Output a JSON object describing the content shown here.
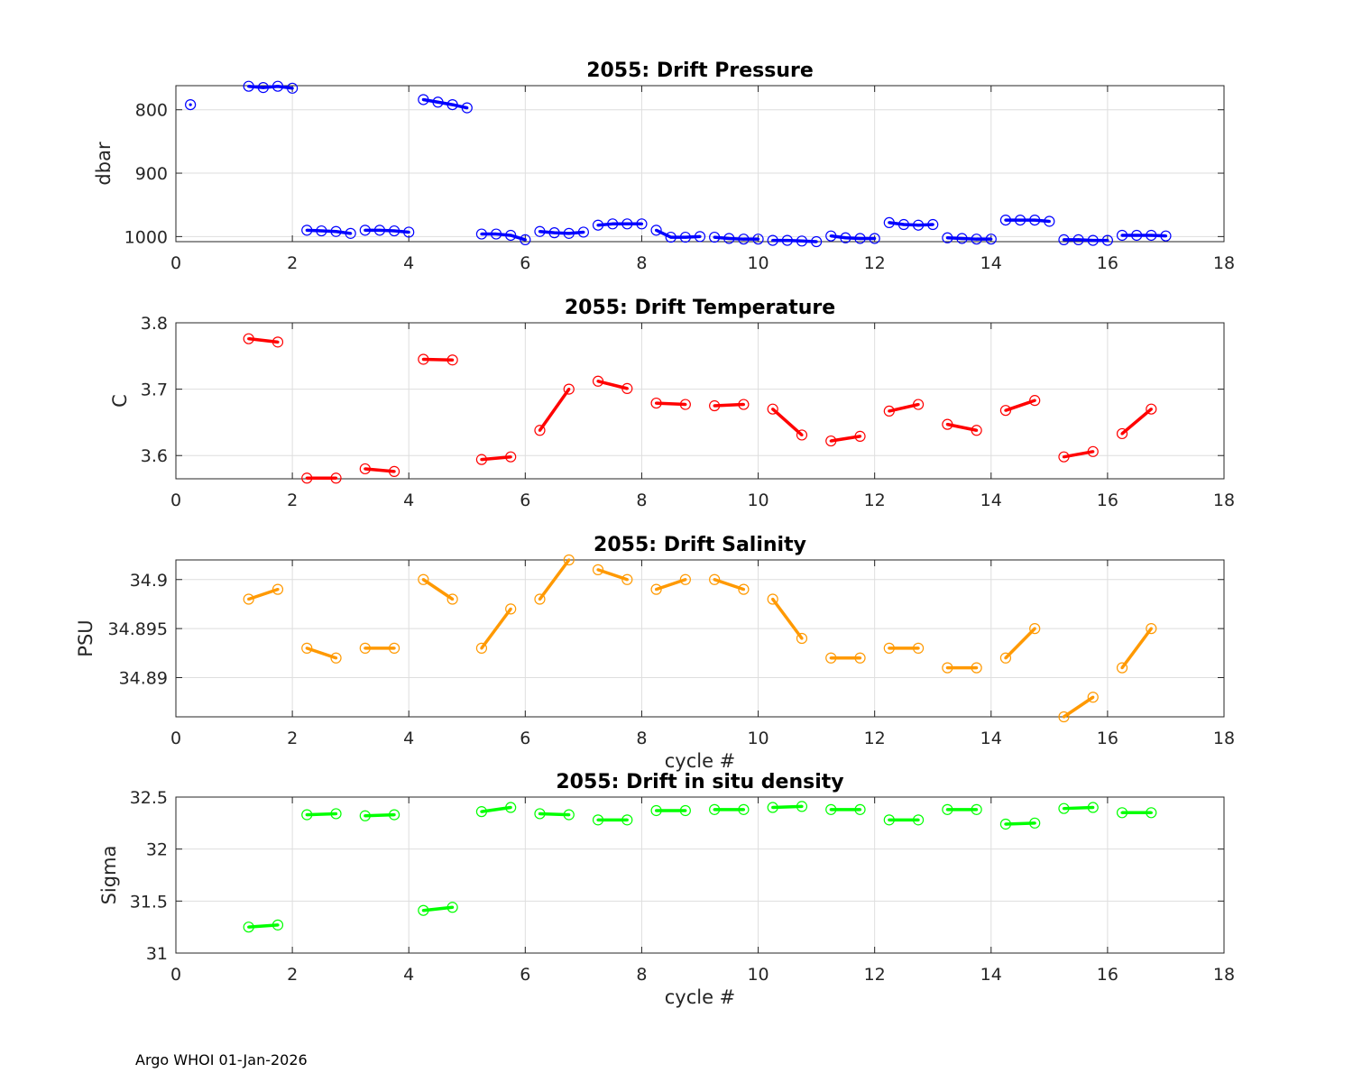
{
  "footer": "Argo WHOI 01-Jan-2026",
  "colors": {
    "pressure": "#0000ff",
    "temperature": "#ff0000",
    "salinity": "#ff9900",
    "density": "#00ff00"
  },
  "chart_data": [
    {
      "id": "pressure",
      "type": "line",
      "title": "2055: Drift Pressure",
      "xlabel": "",
      "ylabel": "dbar",
      "xlim": [
        0,
        18
      ],
      "ylim": [
        1008,
        762
      ],
      "reversed_y": true,
      "xticks": [
        0,
        2,
        4,
        6,
        8,
        10,
        12,
        14,
        16,
        18
      ],
      "yticks": [
        800,
        900,
        1000
      ],
      "ytick_labels": [
        "800",
        "900",
        "1000"
      ],
      "color": "#0000ff",
      "series": [
        {
          "x": [
            0.25
          ],
          "y": [
            792
          ]
        },
        {
          "x": [
            1.25,
            1.5,
            1.75,
            2.0
          ],
          "y": [
            763,
            765,
            763,
            766
          ]
        },
        {
          "x": [
            2.25,
            2.5,
            2.75,
            3.0
          ],
          "y": [
            990,
            991,
            992,
            995
          ]
        },
        {
          "x": [
            3.25,
            3.5,
            3.75,
            4.0
          ],
          "y": [
            990,
            990,
            991,
            993
          ]
        },
        {
          "x": [
            4.25,
            4.5,
            4.75,
            5.0
          ],
          "y": [
            784,
            788,
            792,
            797
          ]
        },
        {
          "x": [
            5.25,
            5.5,
            5.75,
            6.0
          ],
          "y": [
            996,
            996,
            998,
            1005
          ]
        },
        {
          "x": [
            6.25,
            6.5,
            6.75,
            7.0
          ],
          "y": [
            992,
            994,
            995,
            993
          ]
        },
        {
          "x": [
            7.25,
            7.5,
            7.75,
            8.0
          ],
          "y": [
            982,
            980,
            980,
            980
          ]
        },
        {
          "x": [
            8.25,
            8.5,
            8.75,
            9.0
          ],
          "y": [
            990,
            1001,
            1001,
            1000
          ]
        },
        {
          "x": [
            9.25,
            9.5,
            9.75,
            10.0
          ],
          "y": [
            1001,
            1003,
            1004,
            1004
          ]
        },
        {
          "x": [
            10.25,
            10.5,
            10.75,
            11.0
          ],
          "y": [
            1006,
            1006,
            1007,
            1008
          ]
        },
        {
          "x": [
            11.25,
            11.5,
            11.75,
            12.0
          ],
          "y": [
            999,
            1002,
            1003,
            1003
          ]
        },
        {
          "x": [
            12.25,
            12.5,
            12.75,
            13.0
          ],
          "y": [
            978,
            981,
            982,
            981
          ]
        },
        {
          "x": [
            13.25,
            13.5,
            13.75,
            14.0
          ],
          "y": [
            1002,
            1003,
            1004,
            1004
          ]
        },
        {
          "x": [
            14.25,
            14.5,
            14.75,
            15.0
          ],
          "y": [
            974,
            974,
            974,
            976
          ]
        },
        {
          "x": [
            15.25,
            15.5,
            15.75,
            16.0
          ],
          "y": [
            1005,
            1005,
            1006,
            1006
          ]
        },
        {
          "x": [
            16.25,
            16.5,
            16.75,
            17.0
          ],
          "y": [
            998,
            998,
            998,
            999
          ]
        }
      ]
    },
    {
      "id": "temperature",
      "type": "line",
      "title": "2055: Drift Temperature",
      "xlabel": "",
      "ylabel": "C",
      "xlim": [
        0,
        18
      ],
      "ylim": [
        3.565,
        3.8
      ],
      "reversed_y": false,
      "xticks": [
        0,
        2,
        4,
        6,
        8,
        10,
        12,
        14,
        16,
        18
      ],
      "yticks": [
        3.6,
        3.7,
        3.8
      ],
      "ytick_labels": [
        "3.6",
        "3.7",
        "3.8"
      ],
      "color": "#ff0000",
      "series": [
        {
          "x": [
            1.25,
            1.75
          ],
          "y": [
            3.776,
            3.771
          ]
        },
        {
          "x": [
            2.25,
            2.75
          ],
          "y": [
            3.566,
            3.566
          ]
        },
        {
          "x": [
            3.25,
            3.75
          ],
          "y": [
            3.58,
            3.576
          ]
        },
        {
          "x": [
            4.25,
            4.75
          ],
          "y": [
            3.745,
            3.744
          ]
        },
        {
          "x": [
            5.25,
            5.75
          ],
          "y": [
            3.594,
            3.598
          ]
        },
        {
          "x": [
            6.25,
            6.75
          ],
          "y": [
            3.638,
            3.7
          ]
        },
        {
          "x": [
            7.25,
            7.75
          ],
          "y": [
            3.712,
            3.701
          ]
        },
        {
          "x": [
            8.25,
            8.75
          ],
          "y": [
            3.679,
            3.677
          ]
        },
        {
          "x": [
            9.25,
            9.75
          ],
          "y": [
            3.675,
            3.677
          ]
        },
        {
          "x": [
            10.25,
            10.75
          ],
          "y": [
            3.67,
            3.631
          ]
        },
        {
          "x": [
            11.25,
            11.75
          ],
          "y": [
            3.622,
            3.629
          ]
        },
        {
          "x": [
            12.25,
            12.75
          ],
          "y": [
            3.667,
            3.677
          ]
        },
        {
          "x": [
            13.25,
            13.75
          ],
          "y": [
            3.647,
            3.638
          ]
        },
        {
          "x": [
            14.25,
            14.75
          ],
          "y": [
            3.668,
            3.683
          ]
        },
        {
          "x": [
            15.25,
            15.75
          ],
          "y": [
            3.598,
            3.606
          ]
        },
        {
          "x": [
            16.25,
            16.75
          ],
          "y": [
            3.633,
            3.67
          ]
        }
      ]
    },
    {
      "id": "salinity",
      "type": "line",
      "title": "2055: Drift Salinity",
      "xlabel": "cycle #",
      "ylabel": "PSU",
      "xlim": [
        0,
        18
      ],
      "ylim": [
        34.886,
        34.902
      ],
      "reversed_y": false,
      "xticks": [
        0,
        2,
        4,
        6,
        8,
        10,
        12,
        14,
        16,
        18
      ],
      "yticks": [
        34.89,
        34.895,
        34.9
      ],
      "ytick_labels": [
        "34.89",
        "34.895",
        "34.9"
      ],
      "color": "#ff9900",
      "series": [
        {
          "x": [
            1.25,
            1.75
          ],
          "y": [
            34.898,
            34.899
          ]
        },
        {
          "x": [
            2.25,
            2.75
          ],
          "y": [
            34.893,
            34.892
          ]
        },
        {
          "x": [
            3.25,
            3.75
          ],
          "y": [
            34.893,
            34.893
          ]
        },
        {
          "x": [
            4.25,
            4.75
          ],
          "y": [
            34.9,
            34.898
          ]
        },
        {
          "x": [
            5.25,
            5.75
          ],
          "y": [
            34.893,
            34.897
          ]
        },
        {
          "x": [
            6.25,
            6.75
          ],
          "y": [
            34.898,
            34.902
          ]
        },
        {
          "x": [
            7.25,
            7.75
          ],
          "y": [
            34.901,
            34.9
          ]
        },
        {
          "x": [
            8.25,
            8.75
          ],
          "y": [
            34.899,
            34.9
          ]
        },
        {
          "x": [
            9.25,
            9.75
          ],
          "y": [
            34.9,
            34.899
          ]
        },
        {
          "x": [
            10.25,
            10.75
          ],
          "y": [
            34.898,
            34.894
          ]
        },
        {
          "x": [
            11.25,
            11.75
          ],
          "y": [
            34.892,
            34.892
          ]
        },
        {
          "x": [
            12.25,
            12.75
          ],
          "y": [
            34.893,
            34.893
          ]
        },
        {
          "x": [
            13.25,
            13.75
          ],
          "y": [
            34.891,
            34.891
          ]
        },
        {
          "x": [
            14.25,
            14.75
          ],
          "y": [
            34.892,
            34.895
          ]
        },
        {
          "x": [
            15.25,
            15.75
          ],
          "y": [
            34.886,
            34.888
          ]
        },
        {
          "x": [
            16.25,
            16.75
          ],
          "y": [
            34.891,
            34.895
          ]
        }
      ]
    },
    {
      "id": "density",
      "type": "line",
      "title": "2055: Drift in situ density",
      "xlabel": "cycle #",
      "ylabel": "Sigma",
      "xlim": [
        0,
        18
      ],
      "ylim": [
        31,
        32.5
      ],
      "reversed_y": false,
      "xticks": [
        0,
        2,
        4,
        6,
        8,
        10,
        12,
        14,
        16,
        18
      ],
      "yticks": [
        31,
        31.5,
        32,
        32.5
      ],
      "ytick_labels": [
        "31",
        "31.5",
        "32",
        "32.5"
      ],
      "color": "#00ff00",
      "series": [
        {
          "x": [
            1.25,
            1.75
          ],
          "y": [
            31.25,
            31.27
          ]
        },
        {
          "x": [
            2.25,
            2.75
          ],
          "y": [
            32.33,
            32.34
          ]
        },
        {
          "x": [
            3.25,
            3.75
          ],
          "y": [
            32.32,
            32.33
          ]
        },
        {
          "x": [
            4.25,
            4.75
          ],
          "y": [
            31.41,
            31.44
          ]
        },
        {
          "x": [
            5.25,
            5.75
          ],
          "y": [
            32.36,
            32.4
          ]
        },
        {
          "x": [
            6.25,
            6.75
          ],
          "y": [
            32.34,
            32.33
          ]
        },
        {
          "x": [
            7.25,
            7.75
          ],
          "y": [
            32.28,
            32.28
          ]
        },
        {
          "x": [
            8.25,
            8.75
          ],
          "y": [
            32.37,
            32.37
          ]
        },
        {
          "x": [
            9.25,
            9.75
          ],
          "y": [
            32.38,
            32.38
          ]
        },
        {
          "x": [
            10.25,
            10.75
          ],
          "y": [
            32.4,
            32.41
          ]
        },
        {
          "x": [
            11.25,
            11.75
          ],
          "y": [
            32.38,
            32.38
          ]
        },
        {
          "x": [
            12.25,
            12.75
          ],
          "y": [
            32.28,
            32.28
          ]
        },
        {
          "x": [
            13.25,
            13.75
          ],
          "y": [
            32.38,
            32.38
          ]
        },
        {
          "x": [
            14.25,
            14.75
          ],
          "y": [
            32.24,
            32.25
          ]
        },
        {
          "x": [
            15.25,
            15.75
          ],
          "y": [
            32.39,
            32.4
          ]
        },
        {
          "x": [
            16.25,
            16.75
          ],
          "y": [
            32.35,
            32.35
          ]
        }
      ]
    }
  ]
}
